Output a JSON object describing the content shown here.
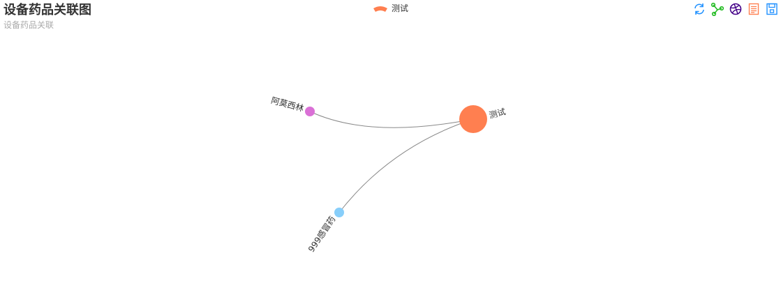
{
  "title": "设备药品关联图",
  "subtitle": "设备药品关联",
  "legend": {
    "label": "测试",
    "color": "#ff7f50"
  },
  "toolbox": [
    {
      "name": "restore-icon",
      "color": "#1e90ff"
    },
    {
      "name": "force-layout-icon",
      "color": "#22bb22"
    },
    {
      "name": "chord-icon",
      "color": "#440088"
    },
    {
      "name": "data-view-icon",
      "color": "#ff7f50"
    },
    {
      "name": "save-image-icon",
      "color": "#1e90ff"
    }
  ],
  "graph": {
    "nodes": [
      {
        "id": "center",
        "label": "测试",
        "color": "#ff7f50",
        "category": "测试"
      },
      {
        "id": "amoxicillin",
        "label": "阿莫西林",
        "color": "#da70d6"
      },
      {
        "id": "999",
        "label": "999感冒药",
        "color": "#87cefa"
      }
    ],
    "links": [
      {
        "source": "center",
        "target": "amoxicillin",
        "color": "#888888"
      },
      {
        "source": "center",
        "target": "999",
        "color": "#888888"
      }
    ]
  }
}
